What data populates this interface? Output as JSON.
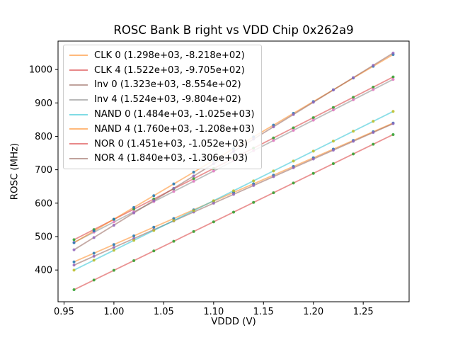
{
  "chart_data": {
    "type": "scatter",
    "title": "ROSC Bank B right vs VDD Chip 0x262a9",
    "xlabel": "VDDD (V)",
    "ylabel": "ROSC (MHz)",
    "xlim": [
      0.944,
      1.296
    ],
    "ylim": [
      305,
      1085
    ],
    "xticks": [
      0.95,
      1.0,
      1.05,
      1.1,
      1.15,
      1.2,
      1.25
    ],
    "xtick_labels": [
      "0.95",
      "1.00",
      "1.05",
      "1.10",
      "1.15",
      "1.20",
      "1.25"
    ],
    "yticks": [
      400,
      500,
      600,
      700,
      800,
      900,
      1000
    ],
    "ytick_labels": [
      "400",
      "500",
      "600",
      "700",
      "800",
      "900",
      "1000"
    ],
    "grid": false,
    "legend_position": "upper left",
    "x_points": [
      0.96,
      0.98,
      1.0,
      1.02,
      1.04,
      1.06,
      1.08,
      1.1,
      1.12,
      1.14,
      1.16,
      1.18,
      1.2,
      1.22,
      1.24,
      1.26,
      1.28
    ],
    "series": [
      {
        "id": "clk-0",
        "label": "CLK 0 (1.298e+03, -8.218e+02)",
        "slope": 1298,
        "intercept": -821.8,
        "line_color": "#ff7f0e",
        "marker_color": "#1f77b4"
      },
      {
        "id": "clk-4",
        "label": "CLK 4 (1.522e+03, -9.705e+02)",
        "slope": 1522,
        "intercept": -970.5,
        "line_color": "#d62728",
        "marker_color": "#2ca02c"
      },
      {
        "id": "inv-0",
        "label": "Inv 0 (1.323e+03, -8.554e+02)",
        "slope": 1323,
        "intercept": -855.4,
        "line_color": "#8c564b",
        "marker_color": "#9467bd"
      },
      {
        "id": "inv-4",
        "label": "Inv 4 (1.524e+03, -9.804e+02)",
        "slope": 1524,
        "intercept": -980.4,
        "line_color": "#7f7f7f",
        "marker_color": "#e377c2"
      },
      {
        "id": "nand-0",
        "label": "NAND 0 (1.484e+03, -1.025e+03)",
        "slope": 1484,
        "intercept": -1025,
        "line_color": "#17becf",
        "marker_color": "#bcbd22"
      },
      {
        "id": "nand-4",
        "label": "NAND 4 (1.760e+03, -1.208e+03)",
        "slope": 1760,
        "intercept": -1208,
        "line_color": "#ff7f0e",
        "marker_color": "#1f77b4"
      },
      {
        "id": "nor-0",
        "label": "NOR 0 (1.451e+03, -1.052e+03)",
        "slope": 1451,
        "intercept": -1052,
        "line_color": "#d62728",
        "marker_color": "#2ca02c"
      },
      {
        "id": "nor-4",
        "label": "NOR 4 (1.840e+03, -1.306e+03)",
        "slope": 1840,
        "intercept": -1306,
        "line_color": "#8c564b",
        "marker_color": "#9467bd"
      }
    ],
    "colors": {
      "background": "#ffffff",
      "axis": "#000000",
      "legend_border": "#cccccc"
    }
  }
}
